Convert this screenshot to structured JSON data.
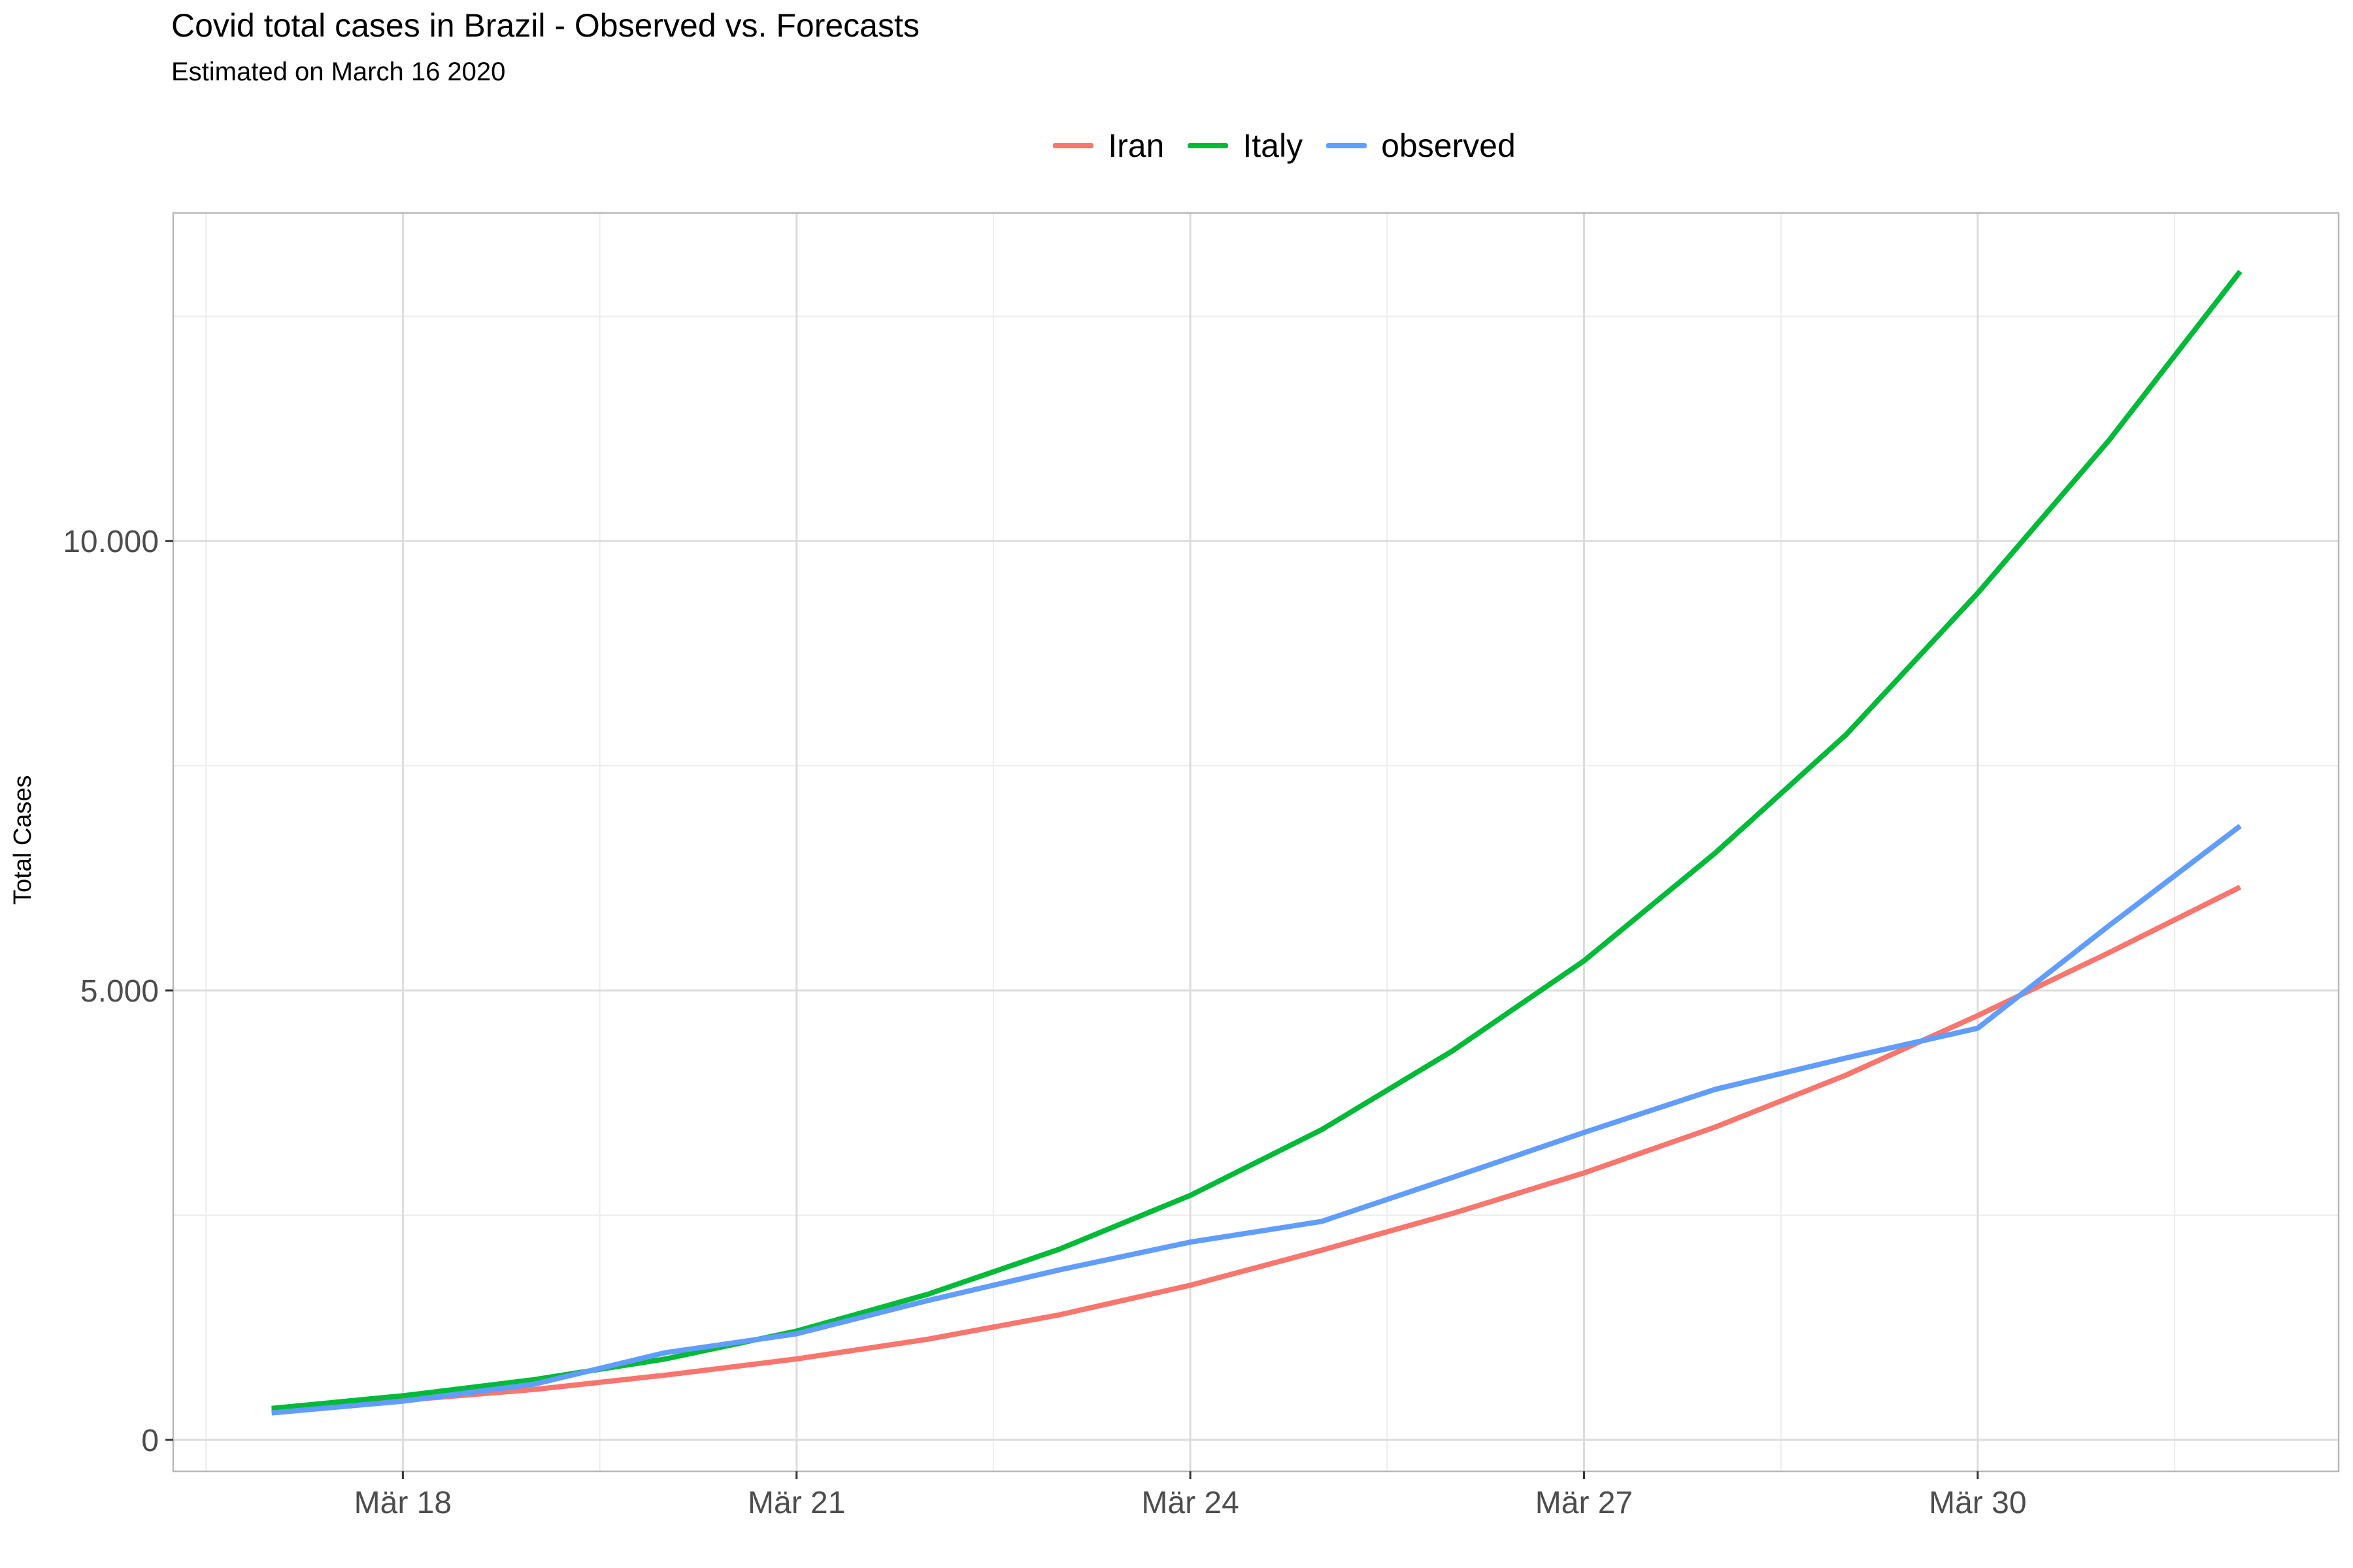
{
  "chart_data": {
    "type": "line",
    "title": "Covid total cases in Brazil - Observed vs. Forecasts",
    "subtitle": "Estimated on March 16 2020",
    "xlabel": "",
    "ylabel": "Total Cases",
    "x": [
      "2020-03-17",
      "2020-03-18",
      "2020-03-19",
      "2020-03-20",
      "2020-03-21",
      "2020-03-22",
      "2020-03-23",
      "2020-03-24",
      "2020-03-25",
      "2020-03-26",
      "2020-03-27",
      "2020-03-28",
      "2020-03-29",
      "2020-03-30",
      "2020-03-31",
      "2020-04-01"
    ],
    "x_ticks": [
      {
        "date": "2020-03-18",
        "label": "Mär 18"
      },
      {
        "date": "2020-03-21",
        "label": "Mär 21"
      },
      {
        "date": "2020-03-24",
        "label": "Mär 24"
      },
      {
        "date": "2020-03-27",
        "label": "Mär 27"
      },
      {
        "date": "2020-03-30",
        "label": "Mär 30"
      }
    ],
    "y_ticks": [
      {
        "value": 0,
        "label": "0"
      },
      {
        "value": 5000,
        "label": "5.000"
      },
      {
        "value": 10000,
        "label": "10.000"
      }
    ],
    "ylim": [
      -350,
      13650
    ],
    "xlim": [
      "2020-03-16T06:00",
      "2020-04-01T18:00"
    ],
    "grid": true,
    "legend_position": "top",
    "series": [
      {
        "name": "Iran",
        "color": "#F8766D",
        "values": [
          320,
          440,
          560,
          720,
          900,
          1120,
          1390,
          1720,
          2110,
          2520,
          2970,
          3480,
          4060,
          4720,
          5420,
          6150
        ]
      },
      {
        "name": "Italy",
        "color": "#00BA38",
        "values": [
          350,
          490,
          670,
          900,
          1210,
          1620,
          2120,
          2720,
          3450,
          4330,
          5330,
          6530,
          7850,
          9420,
          11120,
          13000
        ]
      },
      {
        "name": "observed",
        "color": "#619CFF",
        "values": [
          300,
          430,
          620,
          970,
          1180,
          1550,
          1890,
          2200,
          2430,
          2920,
          3420,
          3900,
          4250,
          4580,
          5720,
          6830
        ]
      }
    ]
  }
}
